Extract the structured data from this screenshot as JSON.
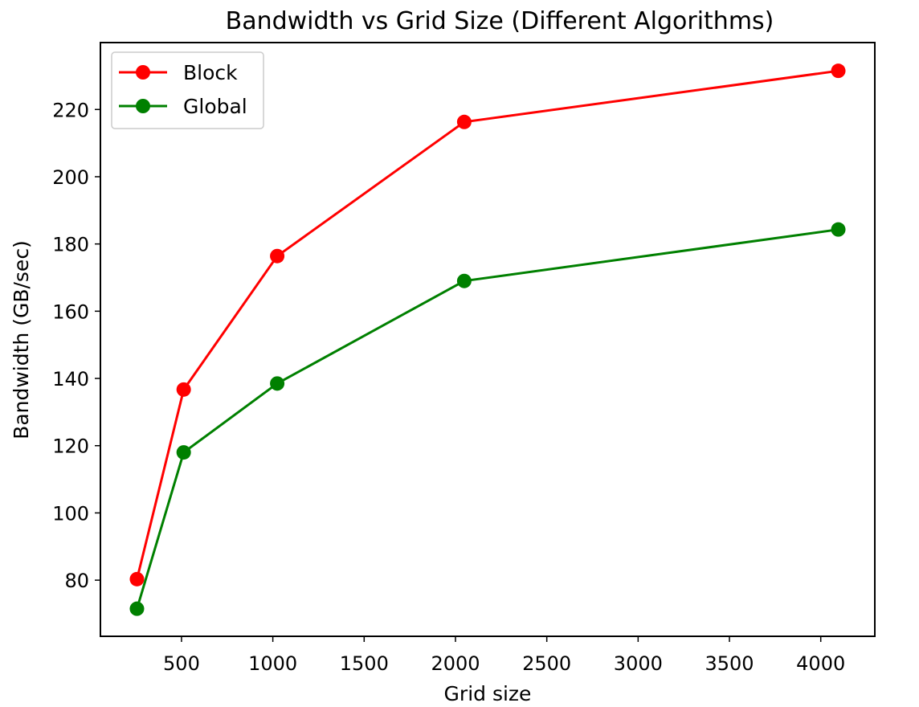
{
  "chart_data": {
    "type": "line",
    "title": "Bandwidth vs Grid Size (Different Algorithms)",
    "xlabel": "Grid size",
    "ylabel": "Bandwidth (GB/sec)",
    "x": [
      256,
      512,
      1024,
      2048,
      4096
    ],
    "xlim": [
      56,
      4296
    ],
    "ylim": [
      63.3,
      239.9
    ],
    "xticks": [
      500,
      1000,
      1500,
      2000,
      2500,
      3000,
      3500,
      4000
    ],
    "yticks": [
      80,
      100,
      120,
      140,
      160,
      180,
      200,
      220
    ],
    "grid": false,
    "legend_position": "top-left",
    "series": [
      {
        "name": "Block",
        "color": "#ff0000",
        "values": [
          80.3,
          136.7,
          176.4,
          216.3,
          231.5
        ]
      },
      {
        "name": "Global",
        "color": "#008000",
        "values": [
          71.5,
          118.0,
          138.5,
          169.0,
          184.3
        ]
      }
    ]
  }
}
